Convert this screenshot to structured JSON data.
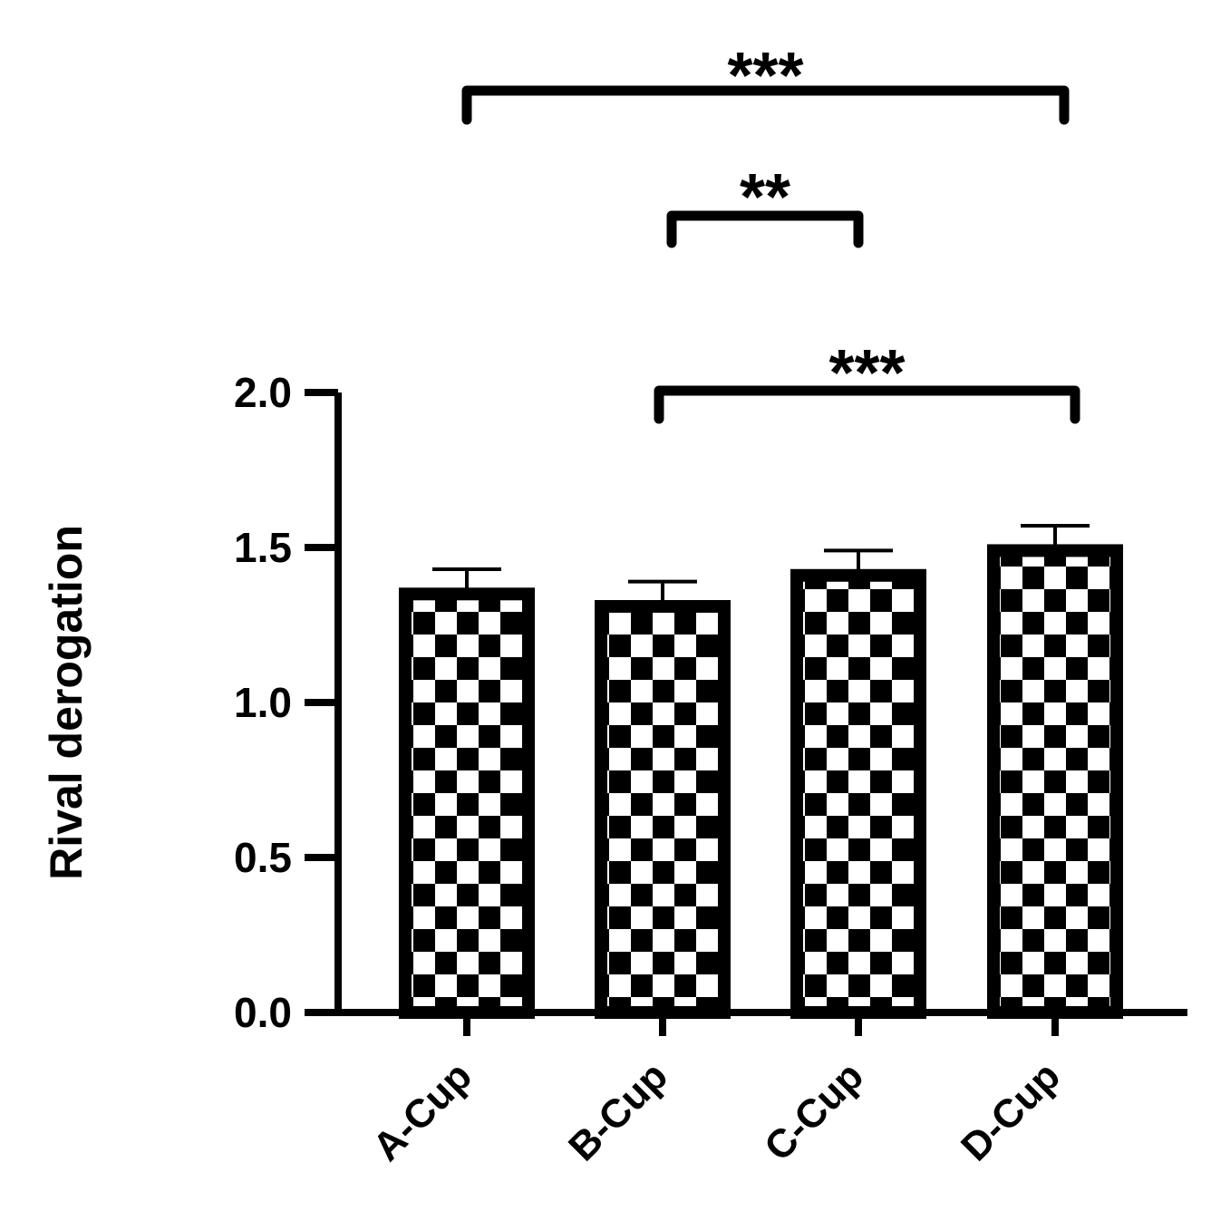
{
  "chart_data": {
    "type": "bar",
    "title": "",
    "xlabel": "",
    "ylabel": "Rival derogation",
    "categories": [
      "A-Cup",
      "B-Cup",
      "C-Cup",
      "D-Cup"
    ],
    "values": [
      1.35,
      1.31,
      1.41,
      1.49
    ],
    "errors": [
      0.08,
      0.08,
      0.08,
      0.08
    ],
    "ylim": [
      0,
      2.0
    ],
    "yticks": [
      0.0,
      0.5,
      1.0,
      1.5,
      2.0
    ],
    "ytick_labels": [
      "0.0",
      "0.5",
      "1.0",
      "1.5",
      "2.0"
    ],
    "grid": false,
    "bar_pattern": "checkerboard",
    "bar_color": "#000000",
    "significance": [
      {
        "from": 0,
        "to": 3,
        "label": "***"
      },
      {
        "from": 1,
        "to": 2,
        "label": "**"
      },
      {
        "from": 1,
        "to": 3,
        "label": "***"
      }
    ]
  }
}
